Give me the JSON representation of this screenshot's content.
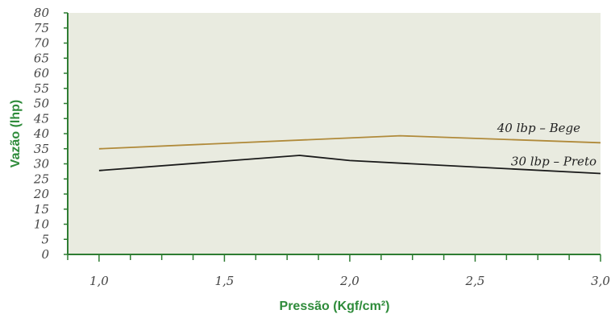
{
  "chart_data": {
    "type": "line",
    "title": "",
    "xlabel": "Pressão (Kgf/cm²)",
    "ylabel": "Vazão (lhp)",
    "xlim": [
      0.875,
      3.0
    ],
    "ylim": [
      0,
      80
    ],
    "x_ticks": [
      "1,0",
      "1,5",
      "2,0",
      "2,5",
      "3,0"
    ],
    "x_tick_values": [
      1.0,
      1.5,
      2.0,
      2.5,
      3.0
    ],
    "y_ticks": [
      "0",
      "5",
      "10",
      "15",
      "20",
      "25",
      "30",
      "35",
      "40",
      "45",
      "50",
      "55",
      "60",
      "65",
      "70",
      "75",
      "80"
    ],
    "y_tick_values": [
      0,
      5,
      10,
      15,
      20,
      25,
      30,
      35,
      40,
      45,
      50,
      55,
      60,
      65,
      70,
      75,
      80
    ],
    "grid": false,
    "legend": "inline labels",
    "series": [
      {
        "name": "40 lbp – Bege",
        "color": "#b08a3a",
        "points": [
          [
            1.0,
            35
          ],
          [
            2.2,
            39.3
          ],
          [
            3.0,
            37
          ]
        ]
      },
      {
        "name": "30 lbp – Preto",
        "color": "#1a1a1a",
        "points": [
          [
            1.0,
            27.8
          ],
          [
            1.8,
            32.8
          ],
          [
            2.0,
            31.1
          ],
          [
            3.0,
            26.8
          ]
        ]
      }
    ],
    "colors": {
      "plot_background": "#e9ebe0",
      "axis": "#2e7d32",
      "axis_title": "#2e8b3a"
    }
  }
}
